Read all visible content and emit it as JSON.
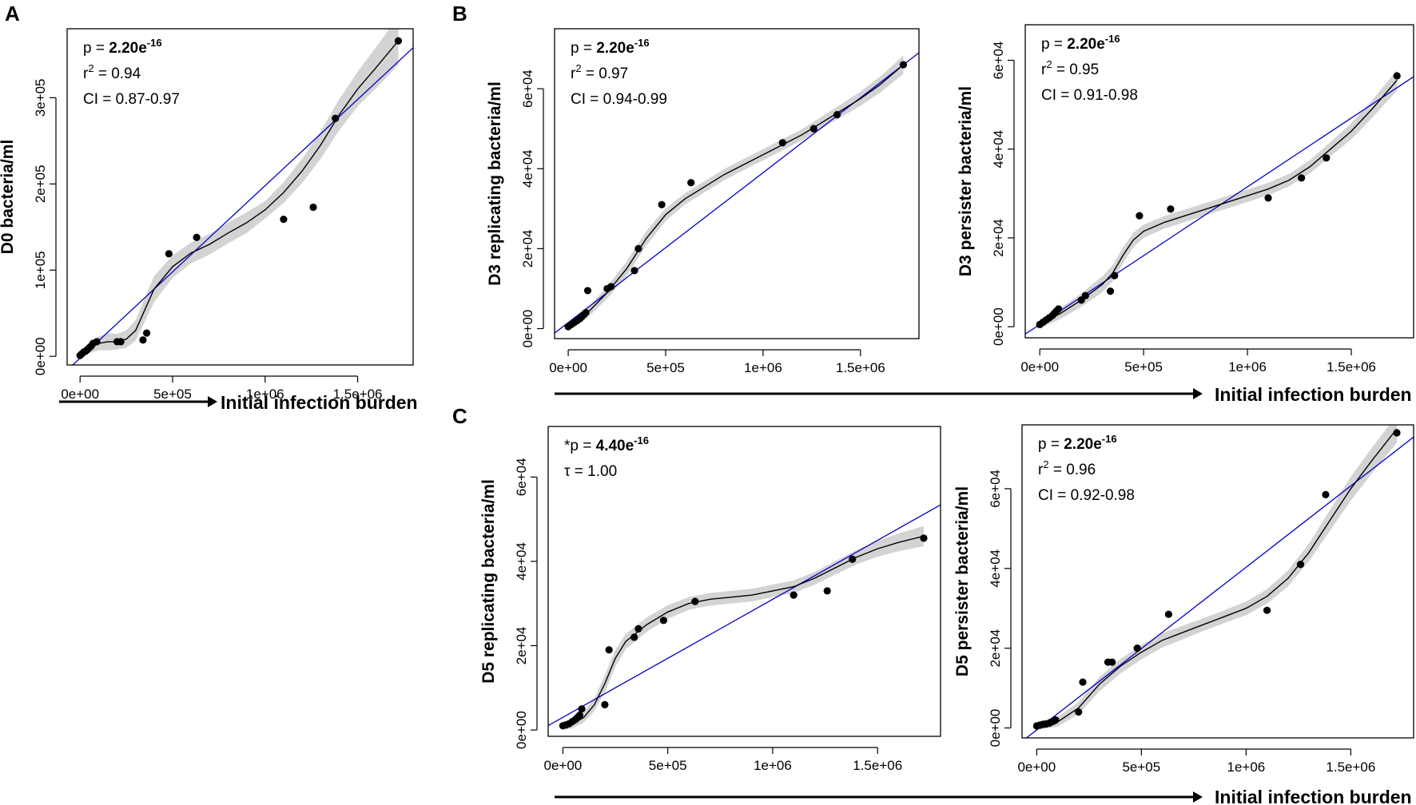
{
  "figure": {
    "panel_letters": [
      "A",
      "B",
      "C"
    ],
    "x_axis_label": "Initial infection burden"
  },
  "chart_data": [
    {
      "id": "A-D0",
      "type": "scatter",
      "ylabel": "D0 bacteria/ml",
      "xlabel": "Initial infection burden",
      "xlim": [
        -70000,
        1800000
      ],
      "ylim": [
        -10000,
        380000
      ],
      "xticks": [
        0,
        500000,
        1000000,
        1500000
      ],
      "xtick_labels": [
        "0e+00",
        "5e+05",
        "1e+06",
        "1.5e+06"
      ],
      "yticks": [
        0,
        100000,
        200000,
        300000
      ],
      "ytick_labels": [
        "0e+00",
        "1e+05",
        "2e+05",
        "3e+05"
      ],
      "stats": [
        {
          "pre": "p = ",
          "val": "2.20e",
          "sup": "-16",
          "bold": true
        },
        {
          "pre": "r",
          "sup": "2",
          "post": " = 0.94"
        },
        {
          "pre": "CI = 0.87-0.97"
        }
      ],
      "points": [
        [
          0,
          1000
        ],
        [
          10000,
          3000
        ],
        [
          20000,
          5000
        ],
        [
          30000,
          6000
        ],
        [
          40000,
          8000
        ],
        [
          50000,
          10000
        ],
        [
          60000,
          12000
        ],
        [
          70000,
          15000
        ],
        [
          90000,
          17000
        ],
        [
          200000,
          17000
        ],
        [
          220000,
          17000
        ],
        [
          340000,
          19000
        ],
        [
          360000,
          27000
        ],
        [
          480000,
          119000
        ],
        [
          630000,
          138000
        ],
        [
          1100000,
          159000
        ],
        [
          1260000,
          173000
        ],
        [
          1380000,
          276000
        ],
        [
          1720000,
          366000
        ]
      ],
      "fit": {
        "intercept": -2000,
        "slope": 0.2
      },
      "smooth": [
        [
          0,
          3000
        ],
        [
          100000,
          15000
        ],
        [
          150000,
          17000
        ],
        [
          200000,
          17000
        ],
        [
          250000,
          20000
        ],
        [
          300000,
          30000
        ],
        [
          400000,
          78000
        ],
        [
          500000,
          104000
        ],
        [
          600000,
          120000
        ],
        [
          700000,
          130000
        ],
        [
          800000,
          143000
        ],
        [
          900000,
          155000
        ],
        [
          1000000,
          170000
        ],
        [
          1100000,
          190000
        ],
        [
          1200000,
          215000
        ],
        [
          1300000,
          245000
        ],
        [
          1400000,
          280000
        ],
        [
          1500000,
          310000
        ],
        [
          1600000,
          335000
        ],
        [
          1720000,
          366000
        ]
      ],
      "band": [
        3000,
        8000,
        10000,
        9000,
        10000,
        12000,
        15000,
        13000,
        12000,
        12000,
        12000,
        12000,
        10000,
        12000,
        14000,
        16000,
        18000,
        20000,
        24000,
        28000
      ]
    },
    {
      "id": "B-D3-replicating",
      "type": "scatter",
      "ylabel": "D3 replicating bacteria/ml",
      "xlabel": "Initial infection burden",
      "xlim": [
        -70000,
        1800000
      ],
      "ylim": [
        -2500,
        75000
      ],
      "xticks": [
        0,
        500000,
        1000000,
        1500000
      ],
      "xtick_labels": [
        "0e+00",
        "5e+05",
        "1e+06",
        "1.5e+06"
      ],
      "yticks": [
        0,
        20000,
        40000,
        60000
      ],
      "ytick_labels": [
        "0e+00",
        "2e+04",
        "4e+04",
        "6e+04"
      ],
      "stats": [
        {
          "pre": "p = ",
          "val": "2.20e",
          "sup": "-16",
          "bold": true
        },
        {
          "pre": "r",
          "sup": "2",
          "post": " = 0.97"
        },
        {
          "pre": "CI = 0.94-0.99"
        }
      ],
      "points": [
        [
          0,
          500
        ],
        [
          15000,
          1000
        ],
        [
          30000,
          1500
        ],
        [
          45000,
          2000
        ],
        [
          60000,
          2500
        ],
        [
          70000,
          3000
        ],
        [
          80000,
          3500
        ],
        [
          90000,
          4000
        ],
        [
          100000,
          9500
        ],
        [
          200000,
          10000
        ],
        [
          220000,
          10500
        ],
        [
          340000,
          14500
        ],
        [
          360000,
          20000
        ],
        [
          480000,
          31000
        ],
        [
          630000,
          36500
        ],
        [
          1100000,
          46500
        ],
        [
          1260000,
          50000
        ],
        [
          1380000,
          53500
        ],
        [
          1720000,
          66000
        ]
      ],
      "fit": {
        "intercept": 1500,
        "slope": 0.0375
      },
      "smooth": [
        [
          0,
          500
        ],
        [
          100000,
          4000
        ],
        [
          200000,
          9000
        ],
        [
          300000,
          15000
        ],
        [
          400000,
          22500
        ],
        [
          500000,
          28500
        ],
        [
          600000,
          32500
        ],
        [
          700000,
          35500
        ],
        [
          800000,
          38500
        ],
        [
          900000,
          41000
        ],
        [
          1000000,
          43500
        ],
        [
          1100000,
          46000
        ],
        [
          1200000,
          48500
        ],
        [
          1300000,
          51500
        ],
        [
          1400000,
          54500
        ],
        [
          1500000,
          57500
        ],
        [
          1600000,
          61000
        ],
        [
          1720000,
          66000
        ]
      ],
      "band": [
        1000,
        1200,
        1500,
        1800,
        1800,
        1600,
        1400,
        1400,
        1400,
        1400,
        1400,
        1400,
        1400,
        1500,
        1600,
        1800,
        2000,
        2300
      ]
    },
    {
      "id": "B-D3-persister",
      "type": "scatter",
      "ylabel": "D3 persister bacteria/ml",
      "xlabel": "Initial infection burden",
      "xlim": [
        -70000,
        1800000
      ],
      "ylim": [
        -2500,
        68000
      ],
      "xticks": [
        0,
        500000,
        1000000,
        1500000
      ],
      "xtick_labels": [
        "0e+00",
        "5e+05",
        "1e+06",
        "1.5e+06"
      ],
      "yticks": [
        0,
        20000,
        40000,
        60000
      ],
      "ytick_labels": [
        "0e+00",
        "2e+04",
        "4e+04",
        "6e+04"
      ],
      "stats": [
        {
          "pre": "p = ",
          "val": "2.20e",
          "sup": "-16",
          "bold": true
        },
        {
          "pre": "r",
          "sup": "2",
          "post": " = 0.95"
        },
        {
          "pre": "CI = 0.91-0.98"
        }
      ],
      "points": [
        [
          0,
          500
        ],
        [
          15000,
          1000
        ],
        [
          30000,
          1500
        ],
        [
          45000,
          2000
        ],
        [
          60000,
          2500
        ],
        [
          70000,
          3000
        ],
        [
          80000,
          3500
        ],
        [
          90000,
          4000
        ],
        [
          200000,
          6000
        ],
        [
          220000,
          7000
        ],
        [
          340000,
          8000
        ],
        [
          360000,
          11500
        ],
        [
          480000,
          25000
        ],
        [
          630000,
          26500
        ],
        [
          1100000,
          29000
        ],
        [
          1260000,
          33500
        ],
        [
          1380000,
          38000
        ],
        [
          1720000,
          56500
        ]
      ],
      "fit": {
        "intercept": 500,
        "slope": 0.031
      },
      "smooth": [
        [
          0,
          500
        ],
        [
          100000,
          3000
        ],
        [
          200000,
          6000
        ],
        [
          300000,
          9500
        ],
        [
          350000,
          12000
        ],
        [
          400000,
          16000
        ],
        [
          450000,
          19500
        ],
        [
          500000,
          21500
        ],
        [
          600000,
          23500
        ],
        [
          700000,
          25000
        ],
        [
          800000,
          26500
        ],
        [
          900000,
          28000
        ],
        [
          1000000,
          29500
        ],
        [
          1100000,
          31000
        ],
        [
          1200000,
          33000
        ],
        [
          1300000,
          36000
        ],
        [
          1400000,
          40000
        ],
        [
          1500000,
          44000
        ],
        [
          1600000,
          49000
        ],
        [
          1720000,
          55500
        ]
      ],
      "band": [
        1000,
        1200,
        1500,
        1800,
        1800,
        1800,
        1600,
        1500,
        1400,
        1400,
        1400,
        1400,
        1400,
        1400,
        1400,
        1500,
        1600,
        1800,
        2000,
        2300
      ]
    },
    {
      "id": "C-D5-replicating",
      "type": "scatter",
      "ylabel": "D5 replicating bacteria/ml",
      "xlabel": "Initial infection burden",
      "xlim": [
        -70000,
        1800000
      ],
      "ylim": [
        -1500,
        72000
      ],
      "xticks": [
        0,
        500000,
        1000000,
        1500000
      ],
      "xtick_labels": [
        "0e+00",
        "5e+05",
        "1e+06",
        "1.5e+06"
      ],
      "yticks": [
        0,
        20000,
        40000,
        60000
      ],
      "ytick_labels": [
        "0e+00",
        "2e+04",
        "4e+04",
        "6e+04"
      ],
      "stats": [
        {
          "pre": "*p = ",
          "val": "4.40e",
          "sup": "-16",
          "bold": true
        },
        {
          "pre": "τ = 1.00"
        }
      ],
      "points": [
        [
          0,
          1000
        ],
        [
          15000,
          1200
        ],
        [
          30000,
          1500
        ],
        [
          45000,
          2000
        ],
        [
          60000,
          2500
        ],
        [
          70000,
          3000
        ],
        [
          80000,
          3500
        ],
        [
          90000,
          5000
        ],
        [
          200000,
          6000
        ],
        [
          220000,
          19000
        ],
        [
          340000,
          22000
        ],
        [
          360000,
          24000
        ],
        [
          480000,
          26000
        ],
        [
          630000,
          30500
        ],
        [
          1100000,
          32000
        ],
        [
          1260000,
          33000
        ],
        [
          1380000,
          40500
        ],
        [
          1720000,
          45500
        ]
      ],
      "fit": {
        "intercept": 3000,
        "slope": 0.028
      },
      "smooth": [
        [
          0,
          1000
        ],
        [
          50000,
          1500
        ],
        [
          100000,
          3000
        ],
        [
          150000,
          6000
        ],
        [
          200000,
          11000
        ],
        [
          250000,
          17000
        ],
        [
          300000,
          21000
        ],
        [
          400000,
          25000
        ],
        [
          500000,
          28000
        ],
        [
          600000,
          30000
        ],
        [
          700000,
          31000
        ],
        [
          800000,
          31500
        ],
        [
          900000,
          32000
        ],
        [
          1000000,
          33000
        ],
        [
          1100000,
          34000
        ],
        [
          1200000,
          36000
        ],
        [
          1300000,
          38500
        ],
        [
          1400000,
          41000
        ],
        [
          1500000,
          43000
        ],
        [
          1600000,
          44500
        ],
        [
          1720000,
          46000
        ]
      ],
      "band": [
        1000,
        1000,
        1200,
        1500,
        2000,
        2000,
        1800,
        1700,
        1600,
        1500,
        1500,
        1500,
        1500,
        1500,
        1500,
        1500,
        1600,
        1700,
        1900,
        2100,
        2400
      ]
    },
    {
      "id": "C-D5-persister",
      "type": "scatter",
      "ylabel": "D5 persister  bacteria/ml",
      "xlabel": "Initial infection burden",
      "xlim": [
        -70000,
        1800000
      ],
      "ylim": [
        -2500,
        76000
      ],
      "xticks": [
        0,
        500000,
        1000000,
        1500000
      ],
      "xtick_labels": [
        "0e+00",
        "5e+05",
        "1e+06",
        "1.5e+06"
      ],
      "yticks": [
        0,
        20000,
        40000,
        60000
      ],
      "ytick_labels": [
        "0e+00",
        "2e+04",
        "4e+04",
        "6e+04"
      ],
      "stats": [
        {
          "pre": "p = ",
          "val": "2.20e",
          "sup": "-16",
          "bold": true
        },
        {
          "pre": "r",
          "sup": "2",
          "post": " = 0.96"
        },
        {
          "pre": "CI = 0.92-0.98"
        }
      ],
      "points": [
        [
          0,
          500
        ],
        [
          15000,
          700
        ],
        [
          30000,
          900
        ],
        [
          45000,
          1000
        ],
        [
          60000,
          1200
        ],
        [
          70000,
          1500
        ],
        [
          80000,
          1700
        ],
        [
          90000,
          2000
        ],
        [
          200000,
          4000
        ],
        [
          220000,
          11500
        ],
        [
          340000,
          16500
        ],
        [
          360000,
          16500
        ],
        [
          480000,
          20000
        ],
        [
          630000,
          28500
        ],
        [
          1100000,
          29500
        ],
        [
          1260000,
          41000
        ],
        [
          1380000,
          58500
        ],
        [
          1720000,
          74000
        ]
      ],
      "fit": {
        "intercept": -500,
        "slope": 0.0408
      },
      "smooth": [
        [
          0,
          500
        ],
        [
          100000,
          1500
        ],
        [
          200000,
          5000
        ],
        [
          300000,
          11000
        ],
        [
          400000,
          15500
        ],
        [
          500000,
          19000
        ],
        [
          600000,
          22000
        ],
        [
          700000,
          24000
        ],
        [
          800000,
          26000
        ],
        [
          900000,
          28000
        ],
        [
          1000000,
          30000
        ],
        [
          1100000,
          33000
        ],
        [
          1200000,
          37500
        ],
        [
          1300000,
          44000
        ],
        [
          1400000,
          52000
        ],
        [
          1500000,
          60000
        ],
        [
          1600000,
          67000
        ],
        [
          1720000,
          75000
        ]
      ],
      "band": [
        1000,
        1200,
        1500,
        1800,
        1800,
        1800,
        1800,
        1700,
        1600,
        1600,
        1700,
        1800,
        2000,
        2200,
        2600,
        3000,
        3200,
        3500
      ]
    }
  ]
}
